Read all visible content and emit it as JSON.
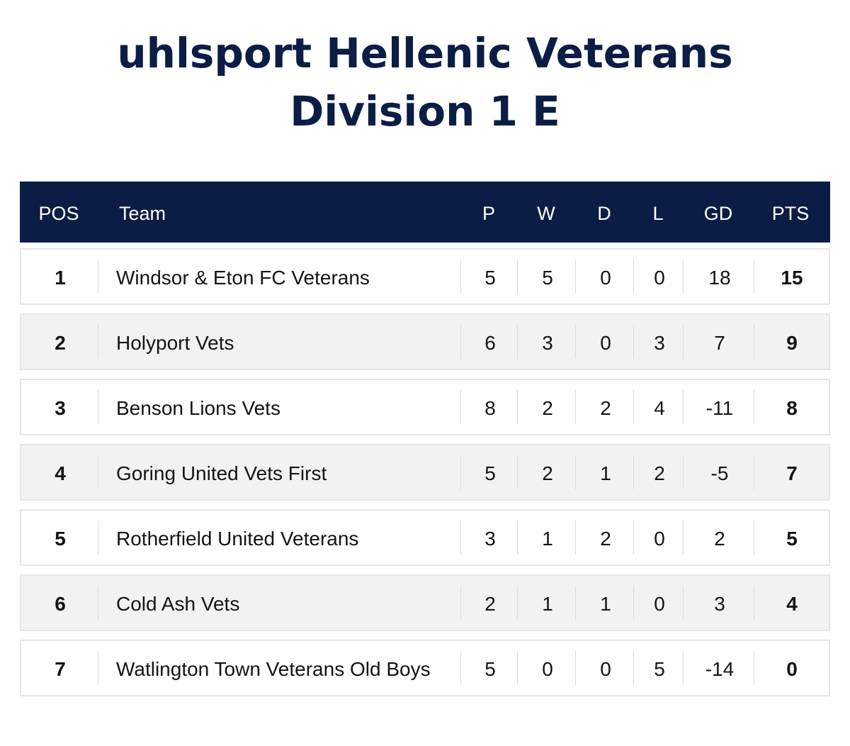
{
  "page": {
    "title": "uhlsport Hellenic Veterans Division 1 E"
  },
  "colors": {
    "header_bg": "#0b1d44",
    "title_text": "#0b1d44",
    "row_alt_bg": "#f2f2f2",
    "row_border": "#e6e6e6"
  },
  "table": {
    "headers": {
      "pos": "POS",
      "team": "Team",
      "p": "P",
      "w": "W",
      "d": "D",
      "l": "L",
      "gd": "GD",
      "pts": "PTS"
    },
    "rows": [
      {
        "pos": "1",
        "team": "Windsor & Eton FC Veterans",
        "p": "5",
        "w": "5",
        "d": "0",
        "l": "0",
        "gd": "18",
        "pts": "15"
      },
      {
        "pos": "2",
        "team": "Holyport Vets",
        "p": "6",
        "w": "3",
        "d": "0",
        "l": "3",
        "gd": "7",
        "pts": "9"
      },
      {
        "pos": "3",
        "team": "Benson Lions Vets",
        "p": "8",
        "w": "2",
        "d": "2",
        "l": "4",
        "gd": "-11",
        "pts": "8"
      },
      {
        "pos": "4",
        "team": "Goring United Vets First",
        "p": "5",
        "w": "2",
        "d": "1",
        "l": "2",
        "gd": "-5",
        "pts": "7"
      },
      {
        "pos": "5",
        "team": "Rotherfield United Veterans",
        "p": "3",
        "w": "1",
        "d": "2",
        "l": "0",
        "gd": "2",
        "pts": "5"
      },
      {
        "pos": "6",
        "team": "Cold Ash Vets",
        "p": "2",
        "w": "1",
        "d": "1",
        "l": "0",
        "gd": "3",
        "pts": "4"
      },
      {
        "pos": "7",
        "team": "Watlington Town Veterans Old Boys",
        "p": "5",
        "w": "0",
        "d": "0",
        "l": "5",
        "gd": "-14",
        "pts": "0"
      }
    ]
  }
}
